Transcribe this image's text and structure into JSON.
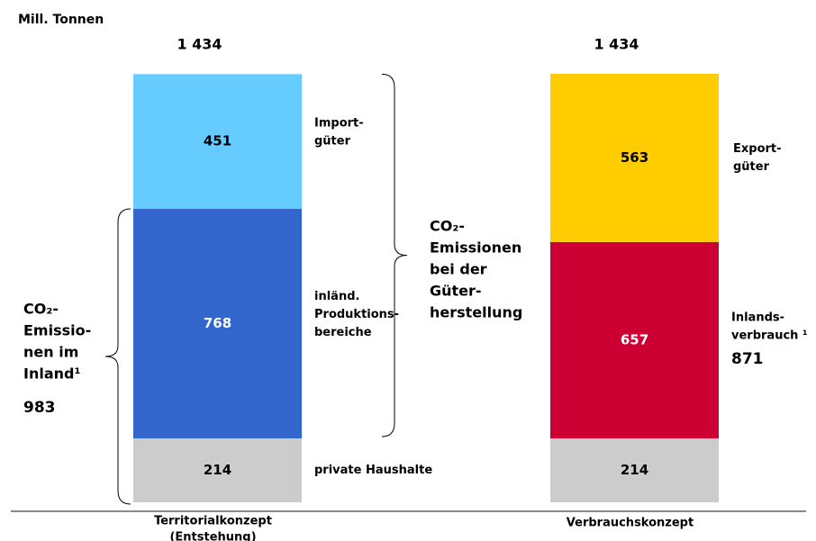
{
  "chart_data": {
    "type": "stacked_bar",
    "axis_label": "Mill. Tonnen",
    "ylim": [
      0,
      1434
    ],
    "bars": [
      {
        "category": [
          "Territorialkonzept",
          "(Entstehung)"
        ],
        "total": 1434,
        "total_label": "1 434",
        "segments": [
          {
            "value": 214,
            "color": "#cccccc",
            "text_color": "#000000",
            "label": [
              "private Haushalte"
            ]
          },
          {
            "value": 768,
            "color": "#3366cc",
            "text_color": "#ffffff",
            "label": [
              "inländ.",
              "Produktions-",
              "bereiche"
            ]
          },
          {
            "value": 451,
            "color": "#66ccff",
            "text_color": "#000000",
            "label": [
              "Import-",
              "güter"
            ]
          }
        ]
      },
      {
        "category": [
          "Verbrauchskonzept"
        ],
        "total": 1434,
        "total_label": "1 434",
        "segments": [
          {
            "value": 214,
            "color": "#cccccc",
            "text_color": "#000000"
          },
          {
            "value": 657,
            "color": "#cc0033",
            "text_color": "#ffffff"
          },
          {
            "value": 563,
            "color": "#ffcc00",
            "text_color": "#000000",
            "label": [
              "Export-",
              "güter"
            ]
          }
        ]
      }
    ],
    "annotations": [
      {
        "lines": [
          "CO₂-",
          "Emissio-",
          "nen im",
          "Inland¹"
        ],
        "value": 983
      },
      {
        "lines": [
          "CO₂-",
          "Emissionen",
          "bei der",
          "Güter-",
          "herstellung"
        ]
      },
      {
        "lines": [
          "Inlands-",
          "verbrauch ¹"
        ],
        "value": 871
      }
    ]
  }
}
